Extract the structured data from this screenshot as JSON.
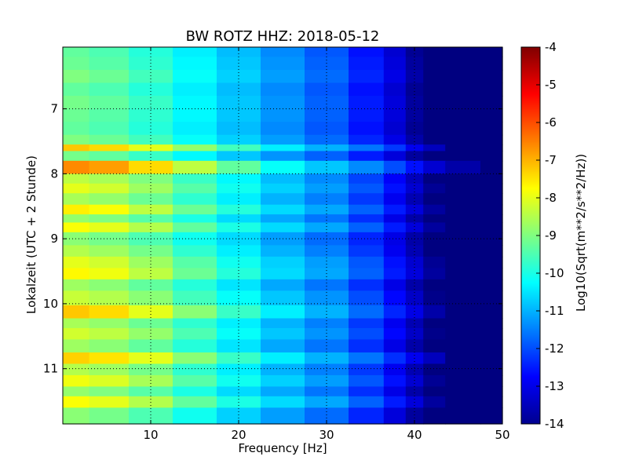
{
  "chart_data": {
    "type": "heatmap",
    "title": "BW ROTZ HHZ: 2018-05-12",
    "xlabel": "Frequency [Hz]",
    "ylabel": "Lokalzeit (UTC + 2 Stunde)",
    "colorbar_label": "Log10(Sqrt(m**2/s**2/Hz))",
    "xlim": [
      0,
      50
    ],
    "ylim": [
      11.85,
      6.05
    ],
    "xticks": [
      "10",
      "20",
      "30",
      "40",
      "50"
    ],
    "yticks": [
      "7",
      "8",
      "9",
      "10",
      "11"
    ],
    "clim": [
      -14,
      -4
    ],
    "colorbar_ticks": [
      "-4",
      "-5",
      "-6",
      "-7",
      "-8",
      "-9",
      "-10",
      "-11",
      "-12",
      "-13",
      "-14"
    ],
    "colormap": "jet",
    "grid": true,
    "grid_style": "dotted",
    "rows_time": [
      6.1,
      6.3,
      6.5,
      6.7,
      6.9,
      7.1,
      7.3,
      7.5,
      7.6,
      7.7,
      7.9,
      8.1,
      8.2,
      8.4,
      8.55,
      8.7,
      8.8,
      9.0,
      9.2,
      9.35,
      9.55,
      9.7,
      9.9,
      10.15,
      10.3,
      10.45,
      10.65,
      10.85,
      11.0,
      11.2,
      11.35,
      11.5,
      11.7
    ],
    "cols_freq": [
      1,
      5,
      10,
      15,
      20,
      25,
      30,
      35,
      38,
      40,
      42,
      45,
      50
    ],
    "z": [
      [
        -9.3,
        -9.5,
        -9.9,
        -10.4,
        -10.9,
        -11.4,
        -11.9,
        -12.6,
        -13.2,
        -13.8,
        -14.0,
        -14.0,
        -14.0
      ],
      [
        -9.2,
        -9.4,
        -9.8,
        -10.3,
        -10.8,
        -11.3,
        -11.8,
        -12.5,
        -13.1,
        -13.7,
        -14.0,
        -14.0,
        -14.0
      ],
      [
        -9.0,
        -9.2,
        -9.6,
        -10.2,
        -10.7,
        -11.2,
        -11.7,
        -12.4,
        -13.0,
        -13.6,
        -14.0,
        -14.0,
        -14.0
      ],
      [
        -9.3,
        -9.5,
        -9.9,
        -10.4,
        -10.9,
        -11.4,
        -11.9,
        -12.6,
        -13.2,
        -13.8,
        -14.0,
        -14.0,
        -14.0
      ],
      [
        -9.1,
        -9.3,
        -9.7,
        -10.3,
        -10.8,
        -11.3,
        -11.8,
        -12.5,
        -13.1,
        -13.7,
        -14.0,
        -14.0,
        -14.0
      ],
      [
        -9.2,
        -9.4,
        -9.8,
        -10.3,
        -10.8,
        -11.3,
        -11.8,
        -12.5,
        -13.1,
        -13.7,
        -14.0,
        -14.0,
        -14.0
      ],
      [
        -9.3,
        -9.5,
        -9.9,
        -10.4,
        -10.9,
        -11.4,
        -11.9,
        -12.6,
        -13.2,
        -13.8,
        -14.0,
        -14.0,
        -14.0
      ],
      [
        -9.0,
        -9.2,
        -9.6,
        -10.2,
        -10.7,
        -11.2,
        -11.7,
        -12.4,
        -13.0,
        -13.6,
        -14.0,
        -14.0,
        -14.0
      ],
      [
        -7.2,
        -7.4,
        -8.0,
        -8.8,
        -9.6,
        -10.4,
        -11.0,
        -11.6,
        -12.2,
        -12.9,
        -13.4,
        -14.0,
        -14.0
      ],
      [
        -9.1,
        -9.3,
        -9.7,
        -10.3,
        -10.8,
        -11.3,
        -11.8,
        -12.5,
        -13.1,
        -13.7,
        -14.0,
        -14.0,
        -14.0
      ],
      [
        -6.6,
        -6.8,
        -7.4,
        -8.4,
        -9.3,
        -10.2,
        -10.8,
        -11.4,
        -12.0,
        -12.6,
        -13.2,
        -13.6,
        -14.0
      ],
      [
        -8.4,
        -8.6,
        -9.0,
        -9.7,
        -10.3,
        -10.9,
        -11.4,
        -12.1,
        -12.8,
        -13.4,
        -14.0,
        -14.0,
        -14.0
      ],
      [
        -8.0,
        -8.2,
        -8.7,
        -9.4,
        -10.1,
        -10.7,
        -11.2,
        -11.9,
        -12.6,
        -13.2,
        -13.8,
        -14.0,
        -14.0
      ],
      [
        -8.6,
        -8.8,
        -9.2,
        -9.8,
        -10.4,
        -11.0,
        -11.5,
        -12.2,
        -12.9,
        -13.5,
        -14.0,
        -14.0,
        -14.0
      ],
      [
        -7.6,
        -7.8,
        -8.4,
        -9.2,
        -9.9,
        -10.6,
        -11.1,
        -11.8,
        -12.5,
        -13.1,
        -13.7,
        -14.0,
        -14.0
      ],
      [
        -8.8,
        -9.0,
        -9.4,
        -10.0,
        -10.6,
        -11.1,
        -11.6,
        -12.3,
        -13.0,
        -13.6,
        -14.0,
        -14.0,
        -14.0
      ],
      [
        -7.8,
        -8.0,
        -8.5,
        -9.3,
        -10.0,
        -10.6,
        -11.1,
        -11.8,
        -12.5,
        -13.1,
        -13.7,
        -14.0,
        -14.0
      ],
      [
        -8.9,
        -9.1,
        -9.5,
        -10.1,
        -10.6,
        -11.2,
        -11.7,
        -12.4,
        -13.0,
        -13.6,
        -14.0,
        -14.0,
        -14.0
      ],
      [
        -8.5,
        -8.7,
        -9.1,
        -9.8,
        -10.4,
        -11.0,
        -11.5,
        -12.2,
        -12.9,
        -13.5,
        -14.0,
        -14.0,
        -14.0
      ],
      [
        -8.0,
        -8.2,
        -8.7,
        -9.4,
        -10.1,
        -10.7,
        -11.2,
        -11.9,
        -12.6,
        -13.2,
        -13.8,
        -14.0,
        -14.0
      ],
      [
        -7.7,
        -7.9,
        -8.4,
        -9.2,
        -9.9,
        -10.6,
        -11.1,
        -11.8,
        -12.5,
        -13.1,
        -13.7,
        -14.0,
        -14.0
      ],
      [
        -8.7,
        -8.9,
        -9.3,
        -9.9,
        -10.5,
        -11.1,
        -11.6,
        -12.3,
        -13.0,
        -13.6,
        -14.0,
        -14.0,
        -14.0
      ],
      [
        -8.3,
        -8.5,
        -8.9,
        -9.6,
        -10.2,
        -10.8,
        -11.3,
        -12.0,
        -12.7,
        -13.3,
        -13.9,
        -14.0,
        -14.0
      ],
      [
        -7.2,
        -7.4,
        -8.0,
        -8.9,
        -9.7,
        -10.4,
        -11.0,
        -11.7,
        -12.4,
        -13.0,
        -13.6,
        -14.0,
        -14.0
      ],
      [
        -8.6,
        -8.8,
        -9.2,
        -9.8,
        -10.4,
        -11.0,
        -11.5,
        -12.2,
        -12.9,
        -13.5,
        -14.0,
        -14.0,
        -14.0
      ],
      [
        -8.2,
        -8.4,
        -8.8,
        -9.5,
        -10.2,
        -10.8,
        -11.3,
        -12.0,
        -12.7,
        -13.3,
        -13.9,
        -14.0,
        -14.0
      ],
      [
        -8.7,
        -8.9,
        -9.3,
        -9.9,
        -10.5,
        -11.1,
        -11.6,
        -12.3,
        -13.0,
        -13.6,
        -14.0,
        -14.0,
        -14.0
      ],
      [
        -7.3,
        -7.5,
        -8.0,
        -8.9,
        -9.7,
        -10.4,
        -11.0,
        -11.6,
        -12.3,
        -12.9,
        -13.4,
        -14.0,
        -14.0
      ],
      [
        -8.5,
        -8.7,
        -9.1,
        -9.8,
        -10.4,
        -11.0,
        -11.5,
        -12.2,
        -12.9,
        -13.5,
        -14.0,
        -14.0,
        -14.0
      ],
      [
        -7.9,
        -8.1,
        -8.6,
        -9.4,
        -10.1,
        -10.7,
        -11.2,
        -11.9,
        -12.6,
        -13.2,
        -13.8,
        -14.0,
        -14.0
      ],
      [
        -8.8,
        -9.0,
        -9.4,
        -10.0,
        -10.6,
        -11.1,
        -11.6,
        -12.3,
        -13.0,
        -13.6,
        -14.0,
        -14.0,
        -14.0
      ],
      [
        -7.8,
        -8.0,
        -8.5,
        -9.3,
        -10.0,
        -10.6,
        -11.1,
        -11.8,
        -12.5,
        -13.1,
        -13.7,
        -14.0,
        -14.0
      ],
      [
        -8.9,
        -9.1,
        -9.5,
        -10.1,
        -10.7,
        -11.2,
        -11.7,
        -12.4,
        -13.1,
        -13.7,
        -14.0,
        -14.0,
        -14.0
      ]
    ]
  }
}
